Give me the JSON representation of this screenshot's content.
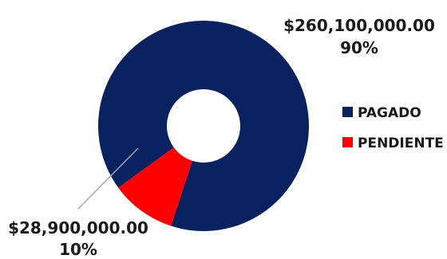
{
  "chart_data": {
    "type": "pie",
    "donut": true,
    "categories": [
      "PAGADO",
      "PENDIENTE"
    ],
    "values": [
      260100000,
      28900000
    ],
    "value_labels": [
      "$260,100,000.00",
      "$28,900,000.00"
    ],
    "percent_labels": [
      "90%",
      "10%"
    ],
    "colors": [
      "#0a2160",
      "#ff0000"
    ],
    "legend": {
      "position": "right",
      "entries": [
        "PAGADO",
        "PENDIENTE"
      ]
    }
  }
}
